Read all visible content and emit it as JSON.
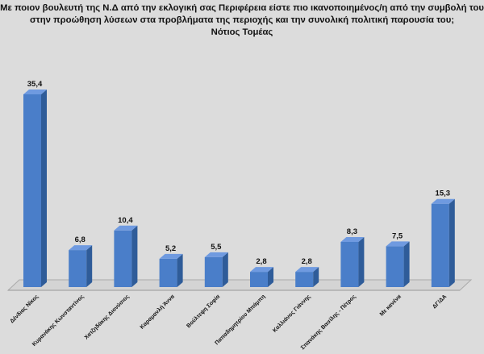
{
  "chart_data": {
    "type": "bar",
    "title": [
      "Με ποιον βουλευτή της Ν.Δ από την εκλογική σας Περιφέρεια είστε πιο ικανοποιημένος/η από την συμβολή του",
      "στην προώθηση λύσεων στα προβλήματα της περιοχής και την συνολική πολιτική παρουσία του;",
      "Νότιος Τομέας"
    ],
    "categories": [
      "Δένδιας Νίκος",
      "Κυρανάκης Κωνσταντίνος",
      "Χατζηδάκης Διονύσιος",
      "Καραμανλή Άννα",
      "Βούλτεψη Σοφία",
      "Παπαδημητρίου Μπάμπη",
      "Καλλιάνος Γιάννης",
      "Σπανάκης Βασίλης - Πέτρος",
      "Με κανένα",
      "ΔΓ/ΔΑ"
    ],
    "values": [
      35.4,
      6.8,
      10.4,
      5.2,
      5.5,
      2.8,
      2.8,
      8.3,
      7.5,
      15.3
    ],
    "data_labels": [
      "35,4",
      "6,8",
      "10,4",
      "5,2",
      "5,5",
      "2,8",
      "2,8",
      "8,3",
      "7,5",
      "15,3"
    ],
    "xlabel": "",
    "ylabel": "",
    "ylim": [
      0,
      36
    ],
    "grid": false,
    "colors": {
      "front": "#4a7ec9",
      "side": "#2f5c99",
      "top": "#6f9ae0"
    }
  }
}
